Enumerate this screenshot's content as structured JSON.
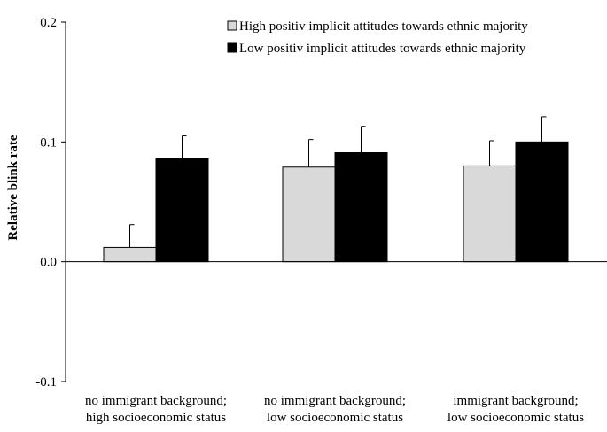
{
  "chart_data": {
    "type": "bar",
    "title": "",
    "xlabel": "",
    "ylabel": "Relative blink rate",
    "ylim": [
      -0.1,
      0.2
    ],
    "yticks": [
      "-0.1",
      "0.0",
      "0.1",
      "0.2"
    ],
    "grid": false,
    "legend_position": "top-right",
    "categories": [
      [
        "no immigrant background;",
        "high socioeconomic status"
      ],
      [
        "no immigrant background;",
        "low socioeconomic status"
      ],
      [
        "immigrant background;",
        "low socioeconomic status"
      ]
    ],
    "series": [
      {
        "name": "High positiv implicit attitudes towards ethnic majority",
        "color": "#d9d9d9",
        "values": [
          0.012,
          0.079,
          0.08
        ],
        "error": [
          0.019,
          0.023,
          0.021
        ]
      },
      {
        "name": "Low positiv implicit attitudes towards ethnic majority",
        "color": "#000000",
        "values": [
          0.086,
          0.091,
          0.1
        ],
        "error": [
          0.019,
          0.022,
          0.021
        ]
      }
    ]
  }
}
